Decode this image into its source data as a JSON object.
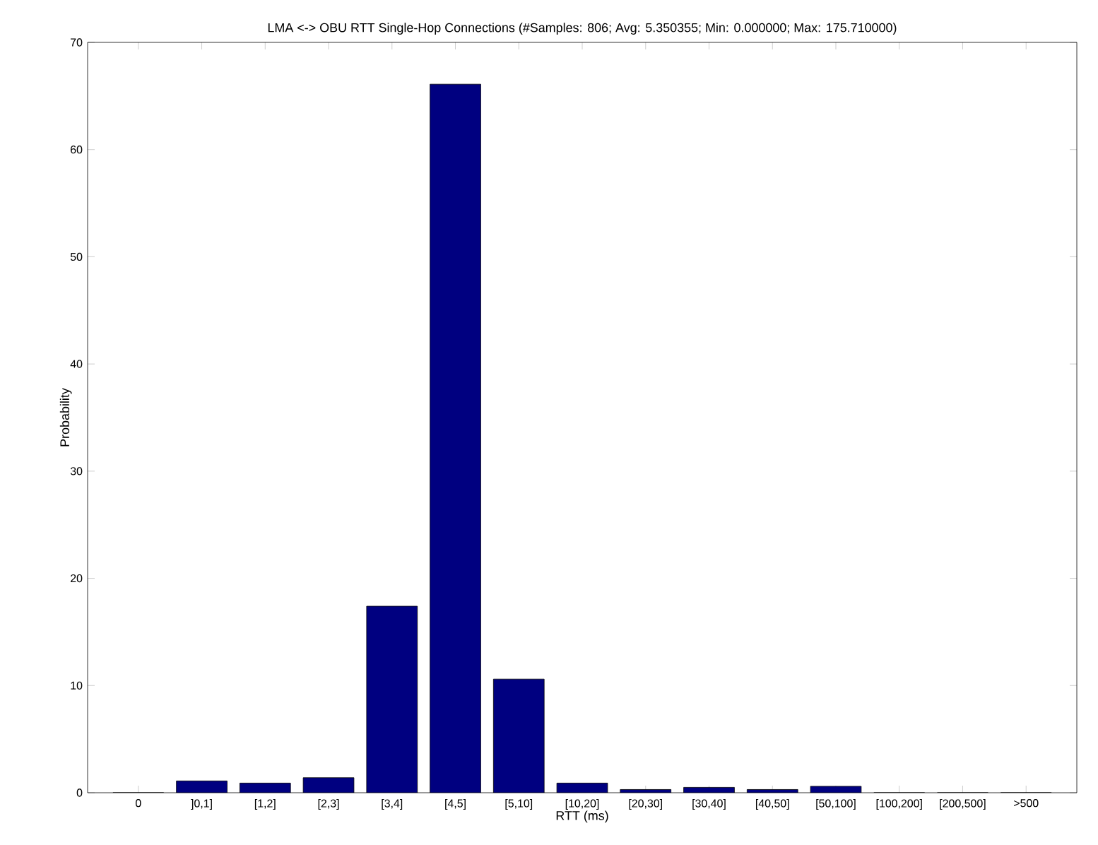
{
  "chart_data": {
    "type": "bar",
    "title": "LMA <-> OBU RTT Single-Hop Connections (#Samples: 806; Avg: 5.350355; Min: 0.000000; Max: 175.710000)",
    "xlabel": "RTT (ms)",
    "ylabel": "Probability",
    "categories": [
      "0",
      "]0,1]",
      "[1,2]",
      "[2,3]",
      "[3,4]",
      "[4,5]",
      "[5,10]",
      "[10,20]",
      "[20,30]",
      "[30,40]",
      "[40,50]",
      "[50,100]",
      "[100,200]",
      "[200,500]",
      ">500"
    ],
    "values": [
      0,
      1.1,
      0.9,
      1.4,
      17.4,
      66.1,
      10.6,
      0.9,
      0.3,
      0.5,
      0.3,
      0.6,
      0,
      0,
      0
    ],
    "color": "#000080",
    "ylim": [
      0,
      70
    ],
    "yticks": [
      0,
      10,
      20,
      30,
      40,
      50,
      60,
      70
    ],
    "grid": false
  }
}
